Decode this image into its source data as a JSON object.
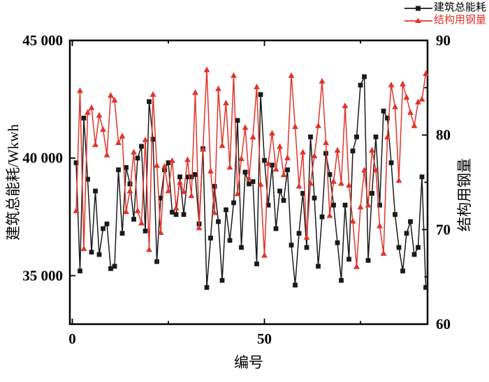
{
  "chart_data": {
    "type": "line",
    "title": "",
    "xlabel": "编号",
    "ylabel_left": "建筑总能耗/Wkwh",
    "ylabel_right": "结构用钢量",
    "x_axis": {
      "lim": [
        -0.64,
        92.45
      ],
      "major_ticks": [
        0,
        50
      ],
      "minor_ticks": [
        25,
        75
      ],
      "tick_labels": [
        "0",
        "50"
      ]
    },
    "y_left": {
      "lim": [
        32940,
        45000
      ],
      "major_ticks": [
        35000,
        40000,
        45000
      ],
      "tick_labels": [
        "35 000",
        "40 000",
        "45 000"
      ]
    },
    "y_right": {
      "lim": [
        60,
        90
      ],
      "major_ticks": [
        60,
        70,
        80,
        90
      ],
      "minor_ticks": [
        65,
        75,
        85
      ],
      "tick_labels": [
        "60",
        "70",
        "80",
        "90"
      ]
    },
    "grid": "off",
    "legend_position": "top-right-outside",
    "x_start": 1,
    "series": [
      {
        "name": "建筑总能耗",
        "axis": "left",
        "color": "#1a1a1a",
        "marker": "square",
        "values": [
          39800,
          35200,
          41700,
          39100,
          36000,
          38600,
          35900,
          37000,
          37200,
          35300,
          35400,
          39500,
          36800,
          39600,
          38900,
          37400,
          40000,
          40500,
          36900,
          42400,
          40800,
          35600,
          38300,
          39500,
          39800,
          37700,
          37600,
          39200,
          37600,
          39200,
          39200,
          39300,
          37200,
          40400,
          34500,
          36600,
          38800,
          37300,
          34800,
          37800,
          36500,
          38100,
          41600,
          36200,
          39400,
          38900,
          39000,
          35500,
          42700,
          39900,
          38000,
          39700,
          37000,
          38600,
          38200,
          39500,
          36300,
          34600,
          36800,
          38500,
          36200,
          40900,
          38300,
          35400,
          37500,
          40200,
          39300,
          38000,
          36400,
          34800,
          38000,
          35700,
          40300,
          40900,
          43100,
          43460,
          35650,
          38500,
          40900,
          38000,
          42000,
          41700,
          39800,
          37600,
          36200,
          35200,
          36800,
          37300,
          35900,
          36200,
          39200,
          34500
        ]
      },
      {
        "name": "结构用钢量",
        "axis": "right",
        "color": "#e0352b",
        "marker": "triangle",
        "values": [
          72.0,
          84.7,
          68.0,
          82.4,
          82.9,
          79.0,
          82.1,
          80.6,
          77.9,
          84.2,
          83.7,
          79.2,
          79.9,
          71.9,
          74.1,
          78.2,
          72.0,
          70.7,
          79.5,
          67.9,
          84.3,
          76.8,
          69.7,
          76.7,
          74.1,
          77.3,
          72.3,
          75.0,
          74.0,
          77.4,
          73.6,
          84.5,
          70.2,
          78.5,
          86.9,
          76.2,
          71.8,
          84.9,
          78.9,
          83.4,
          76.6,
          86.3,
          73.8,
          77.5,
          80.8,
          75.4,
          79.8,
          85.1,
          74.8,
          67.3,
          77.0,
          80.2,
          76.4,
          78.8,
          75.8,
          77.6,
          86.3,
          80.9,
          74.6,
          78.2,
          69.2,
          74.9,
          77.8,
          81.0,
          85.7,
          79.2,
          71.5,
          75.1,
          78.4,
          74.9,
          83.1,
          74.7,
          70.9,
          66.1,
          72.4,
          76.3,
          72.6,
          78.4,
          76.3,
          70.4,
          67.5,
          79.8,
          85.3,
          83.0,
          75.2,
          85.4,
          84.0,
          82.4,
          81.0,
          83.5,
          83.8,
          86.5
        ]
      }
    ]
  },
  "legend": {
    "items": [
      {
        "label": "建筑总能耗",
        "color": "#1a1a1a",
        "marker": "square"
      },
      {
        "label": "结构用钢量",
        "color": "#e0352b",
        "marker": "triangle"
      }
    ]
  },
  "layout_colors": {
    "axis": "#000000",
    "background": "#ffffff"
  }
}
